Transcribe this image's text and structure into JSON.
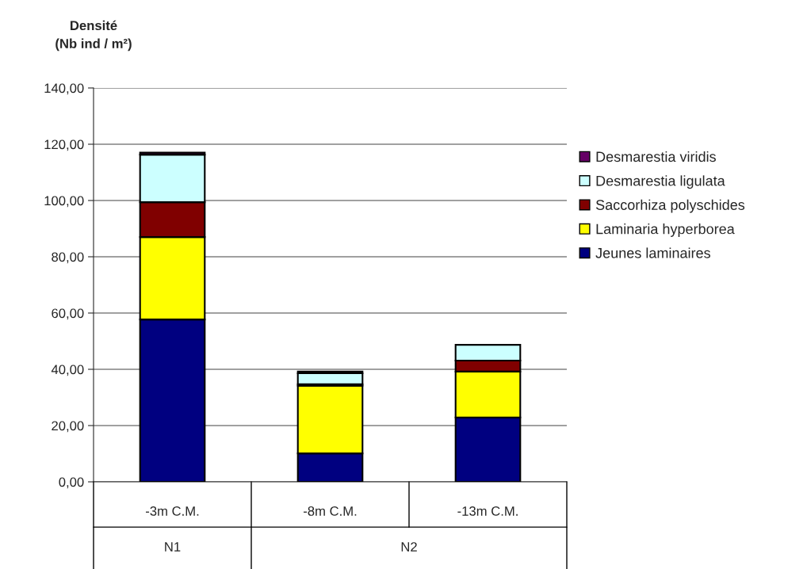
{
  "chart_data": {
    "type": "bar",
    "stacked": true,
    "ylabel": "Densité\n(Nb ind / m²)",
    "categories": [
      "-3m C.M.",
      "-8m C.M.",
      "-13m C.M."
    ],
    "series": [
      {
        "name": "Jeunes laminaires",
        "color": "#000080",
        "values": [
          57.7,
          10.1,
          22.9
        ]
      },
      {
        "name": "Laminaria hyperborea",
        "color": "#ffff00",
        "values": [
          29.3,
          24.1,
          16.3
        ]
      },
      {
        "name": "Saccorhiza polyschides",
        "color": "#800000",
        "values": [
          12.4,
          0.5,
          3.9
        ]
      },
      {
        "name": "Desmarestia ligulata",
        "color": "#ccffff",
        "values": [
          16.9,
          3.9,
          5.6
        ]
      },
      {
        "name": "Desmarestia viridis",
        "color": "#660066",
        "values": [
          0.7,
          0.6,
          null
        ]
      }
    ],
    "ylim": [
      0,
      140
    ],
    "yticks": [
      {
        "value": 0,
        "label": "0,00"
      },
      {
        "value": 20,
        "label": "20,00"
      },
      {
        "value": 40,
        "label": "40,00"
      },
      {
        "value": 60,
        "label": "60,00"
      },
      {
        "value": 80,
        "label": "80,00"
      },
      {
        "value": 100,
        "label": "100,00"
      },
      {
        "value": 120,
        "label": "120,00"
      },
      {
        "value": 140,
        "label": "140,00"
      }
    ],
    "grid": "y",
    "legend": "right",
    "annotations": [
      "N1",
      "N2"
    ]
  }
}
